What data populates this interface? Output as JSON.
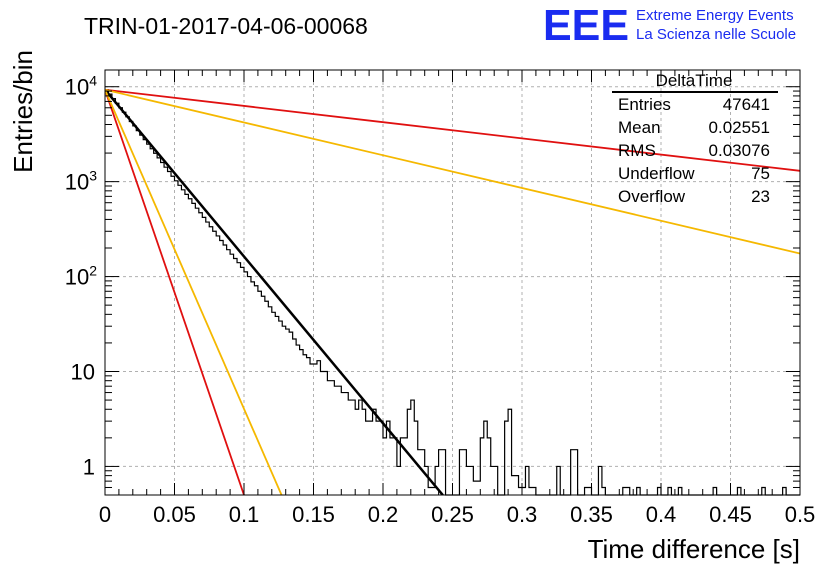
{
  "title": "TRIN-01-2017-04-06-00068",
  "logo": {
    "mark": "EEE",
    "line1": "Extreme Energy Events",
    "line2": "La Scienza nelle Scuole",
    "color": "#1a2cf0"
  },
  "stats": {
    "name": "DeltaTime",
    "rows": [
      {
        "label": "Entries",
        "value": "47641"
      },
      {
        "label": "Mean",
        "value": "0.02551"
      },
      {
        "label": "RMS",
        "value": "0.03076"
      },
      {
        "label": "Underflow",
        "value": "75"
      },
      {
        "label": "Overflow",
        "value": "23"
      }
    ]
  },
  "chart_data": {
    "type": "histogram",
    "title": "TRIN-01-2017-04-06-00068",
    "xlabel": "Time difference [s]",
    "ylabel": "Entries/bin",
    "xlim": [
      0,
      0.5
    ],
    "ylim": [
      0.5,
      15000
    ],
    "ylog": true,
    "grid": true,
    "xticks": [
      "0",
      "0.05",
      "0.1",
      "0.15",
      "0.2",
      "0.25",
      "0.3",
      "0.35",
      "0.4",
      "0.45",
      "0.5"
    ],
    "yticks": [
      {
        "value": 1,
        "label": "1"
      },
      {
        "value": 10,
        "label": "10"
      },
      {
        "value": 100,
        "label": "10",
        "exp": "2"
      },
      {
        "value": 1000,
        "label": "10",
        "exp": "3"
      },
      {
        "value": 10000,
        "label": "10",
        "exp": "4"
      }
    ],
    "histogram": {
      "bin_width": 0.0025,
      "color": "#000000",
      "values": [
        9300,
        8350,
        7500,
        6700,
        6000,
        5380,
        4820,
        4300,
        3860,
        3450,
        3090,
        2770,
        2480,
        2220,
        1990,
        1780,
        1590,
        1420,
        1280,
        1140,
        1020,
        915,
        820,
        735,
        660,
        590,
        525,
        470,
        420,
        375,
        335,
        300,
        268,
        240,
        215,
        192,
        172,
        155,
        140,
        125,
        112,
        100,
        88,
        80,
        70,
        62,
        55,
        48,
        42,
        38,
        34,
        30,
        28,
        26,
        22,
        19,
        17,
        15,
        14,
        12,
        12,
        13,
        10,
        10,
        8,
        8,
        7,
        7,
        6,
        6,
        5,
        5,
        4,
        5,
        4,
        3,
        3,
        4,
        3,
        3,
        2,
        3,
        2,
        2,
        1,
        2,
        2,
        4,
        5,
        3,
        1.5,
        1.5,
        1,
        0.6,
        0.6,
        1,
        1.5,
        1.5,
        0.4,
        0.4,
        0.4,
        0.4,
        1.5,
        1.5,
        1,
        1,
        0.7,
        0.7,
        2,
        3,
        2,
        1,
        1,
        0.4,
        0.4,
        3,
        4,
        0.8,
        0.8,
        0.6,
        0.6,
        1,
        0.6,
        0.6,
        0.4,
        0.4,
        0.4,
        0.4,
        0.4,
        0.4,
        1,
        0.4,
        0.4,
        0.4,
        1.5,
        1.5,
        0.4,
        0.4,
        0.6,
        0.6,
        0.4,
        0.4,
        1,
        0.6,
        0.4,
        0.4,
        0.4,
        0.4,
        0.4,
        0.6,
        0.6,
        0.4,
        0.4,
        0.6,
        0.4,
        0.4,
        0.4,
        0.4,
        0.4,
        0.6,
        0.4,
        0.4,
        0.6,
        0.4,
        0.4,
        0.6,
        0.4,
        0.4,
        0.4,
        0.4,
        0.4,
        0.4,
        0.4,
        0.4,
        0.4,
        0.6,
        0.4,
        0.4,
        0.4,
        0.4,
        0.4,
        0.4,
        0.6,
        0.4,
        0.4,
        0.4,
        0.4,
        0.4,
        0.4,
        0.6,
        0.4,
        0.4,
        0.4,
        0.4,
        0.4,
        0.6,
        0.4,
        0.4,
        0.4,
        0.4
      ]
    },
    "fit_lines": [
      {
        "name": "",
        "color": "#000000",
        "x": [
          0,
          0.243
        ],
        "y": [
          9300,
          0.5
        ]
      },
      {
        "name": "",
        "color": "#e01010",
        "x": [
          0,
          0.5
        ],
        "y": [
          9300,
          1300
        ]
      },
      {
        "name": "",
        "color": "#f5b800",
        "x": [
          0,
          0.5
        ],
        "y": [
          9300,
          175
        ]
      },
      {
        "name": "",
        "color": "#e01010",
        "x": [
          0,
          0.1
        ],
        "y": [
          9300,
          0.5
        ]
      },
      {
        "name": "",
        "color": "#f5b800",
        "x": [
          0,
          0.127
        ],
        "y": [
          9300,
          0.5
        ]
      }
    ]
  }
}
